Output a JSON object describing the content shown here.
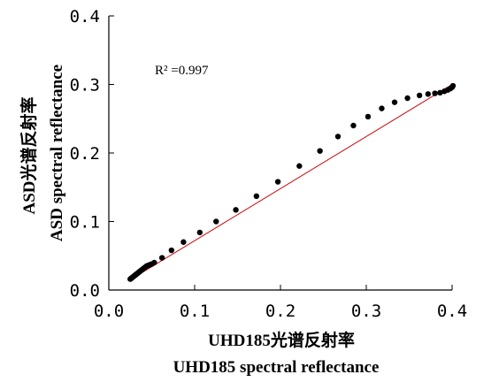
{
  "chart_data": {
    "type": "scatter",
    "xlabel": [
      "UHD185光谱反射率",
      "UHD185 spectral reflectance"
    ],
    "ylabel": [
      "ASD光谱反射率",
      "ASD spectral reflectance"
    ],
    "xlim": [
      0,
      0.4
    ],
    "ylim": [
      0,
      0.4
    ],
    "xticks": [
      "0.0",
      "0.1",
      "0.2",
      "0.3",
      "0.4"
    ],
    "yticks": [
      "0.0",
      "0.1",
      "0.2",
      "0.3",
      "0.4"
    ],
    "annotation": "R² =0.997",
    "grid": false,
    "legend": "none",
    "colors": {
      "points": "#000000",
      "fit_line": "#cc0000"
    },
    "fit_line": {
      "x": [
        0.025,
        0.4
      ],
      "y": [
        0.015,
        0.3
      ]
    },
    "points": [
      [
        0.025,
        0.016
      ],
      [
        0.026,
        0.017
      ],
      [
        0.027,
        0.018
      ],
      [
        0.028,
        0.019
      ],
      [
        0.029,
        0.02
      ],
      [
        0.03,
        0.021
      ],
      [
        0.031,
        0.022
      ],
      [
        0.032,
        0.023
      ],
      [
        0.033,
        0.024
      ],
      [
        0.034,
        0.025
      ],
      [
        0.035,
        0.026
      ],
      [
        0.036,
        0.027
      ],
      [
        0.037,
        0.028
      ],
      [
        0.038,
        0.029
      ],
      [
        0.039,
        0.03
      ],
      [
        0.04,
        0.031
      ],
      [
        0.042,
        0.033
      ],
      [
        0.044,
        0.035
      ],
      [
        0.046,
        0.036
      ],
      [
        0.048,
        0.037
      ],
      [
        0.05,
        0.038
      ],
      [
        0.053,
        0.04
      ],
      [
        0.062,
        0.047
      ],
      [
        0.073,
        0.058
      ],
      [
        0.087,
        0.07
      ],
      [
        0.106,
        0.084
      ],
      [
        0.125,
        0.1
      ],
      [
        0.148,
        0.117
      ],
      [
        0.172,
        0.137
      ],
      [
        0.197,
        0.158
      ],
      [
        0.222,
        0.181
      ],
      [
        0.246,
        0.203
      ],
      [
        0.267,
        0.224
      ],
      [
        0.285,
        0.24
      ],
      [
        0.302,
        0.253
      ],
      [
        0.318,
        0.265
      ],
      [
        0.333,
        0.274
      ],
      [
        0.348,
        0.28
      ],
      [
        0.362,
        0.284
      ],
      [
        0.372,
        0.286
      ],
      [
        0.38,
        0.287
      ],
      [
        0.386,
        0.288
      ],
      [
        0.391,
        0.29
      ],
      [
        0.395,
        0.292
      ],
      [
        0.398,
        0.294
      ],
      [
        0.4,
        0.296
      ],
      [
        0.401,
        0.298
      ]
    ]
  }
}
